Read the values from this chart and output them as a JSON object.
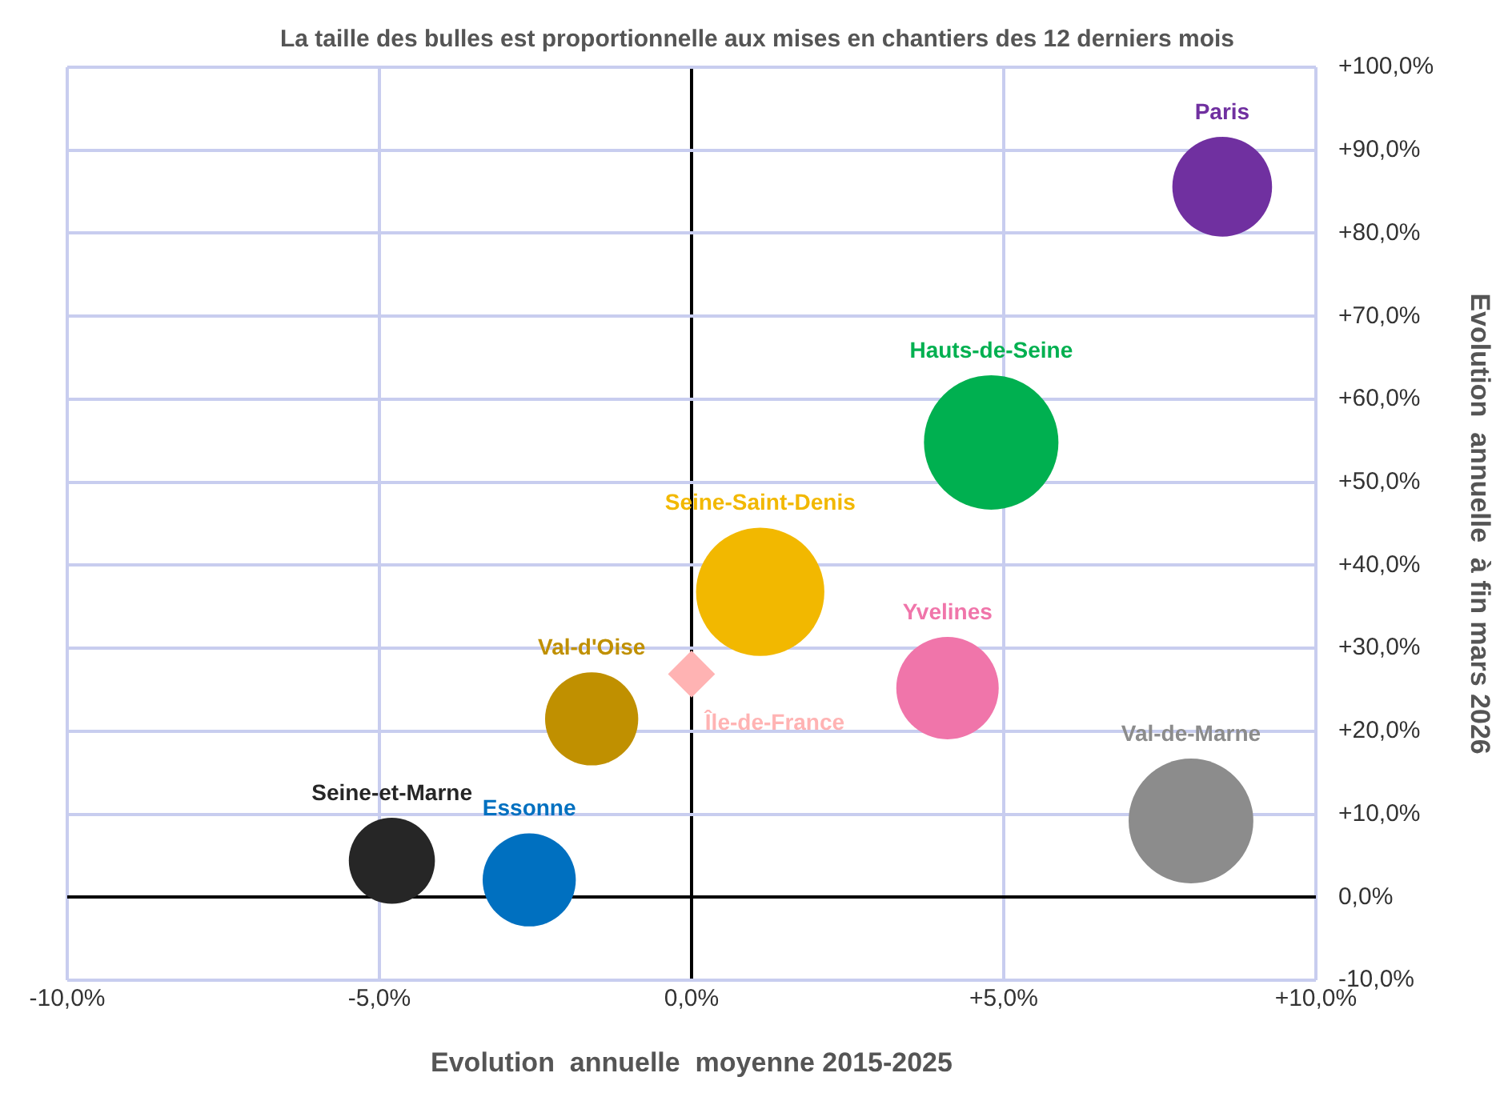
{
  "chart_data": {
    "type": "bubble",
    "title": "La taille des bulles est proportionnelle aux mises en chantiers des 12 derniers mois",
    "xlabel": "Evolution  annuelle  moyenne 2015-2025",
    "ylabel": "Evolution  annuelle  à fin mars 2026",
    "xlim": [
      -10,
      10
    ],
    "xticks": [
      {
        "value": -10,
        "label": "-10,0%"
      },
      {
        "value": -5,
        "label": "-5,0%"
      },
      {
        "value": 0,
        "label": "0,0%"
      },
      {
        "value": 5,
        "label": "+5,0%"
      },
      {
        "value": 10,
        "label": "+10,0%"
      }
    ],
    "ylim": [
      -10,
      100
    ],
    "yticks": [
      {
        "value": -10,
        "label": "-10,0%"
      },
      {
        "value": 0,
        "label": "0,0%"
      },
      {
        "value": 10,
        "label": "+10,0%"
      },
      {
        "value": 20,
        "label": "+20,0%"
      },
      {
        "value": 30,
        "label": "+30,0%"
      },
      {
        "value": 40,
        "label": "+40,0%"
      },
      {
        "value": 50,
        "label": "+50,0%"
      },
      {
        "value": 60,
        "label": "+60,0%"
      },
      {
        "value": 70,
        "label": "+70,0%"
      },
      {
        "value": 80,
        "label": "+80,0%"
      },
      {
        "value": 90,
        "label": "+90,0%"
      },
      {
        "value": 100,
        "label": "+100,0%"
      }
    ],
    "grid": true,
    "legend": false,
    "series": [
      {
        "name": "Paris",
        "color": "#7030a0",
        "x": [
          8.5
        ],
        "values": [
          85.6
        ],
        "sizes": [
          0.55
        ]
      },
      {
        "name": "Hauts-de-Seine",
        "color": "#00b050",
        "x": [
          4.8
        ],
        "values": [
          54.8
        ],
        "sizes": [
          1
        ]
      },
      {
        "name": "Seine-Saint-Denis",
        "color": "#f2b800",
        "x": [
          1.1
        ],
        "values": [
          36.8
        ],
        "sizes": [
          0.91
        ]
      },
      {
        "name": "Yvelines",
        "color": "#f075aa",
        "x": [
          4.1
        ],
        "values": [
          25.2
        ],
        "sizes": [
          0.58
        ]
      },
      {
        "name": "Val-de-Marne",
        "color": "#8c8c8c",
        "x": [
          8.0
        ],
        "values": [
          9.2
        ],
        "sizes": [
          0.86
        ]
      },
      {
        "name": "Val-d'Oise",
        "color": "#c09000",
        "x": [
          -1.6
        ],
        "values": [
          21.5
        ],
        "sizes": [
          0.48
        ]
      },
      {
        "name": "Seine-et-Marne",
        "color": "#262626",
        "x": [
          -4.8
        ],
        "values": [
          4.4
        ],
        "sizes": [
          0.41
        ]
      },
      {
        "name": "Essonne",
        "color": "#0070c0",
        "x": [
          -2.6
        ],
        "values": [
          2.1
        ],
        "sizes": [
          0.48
        ]
      },
      {
        "name": "Île-de-France",
        "type": "scatter",
        "marker": "diamond",
        "color": "#ffb3b3",
        "x": [
          0.0
        ],
        "values": [
          26.9
        ]
      }
    ]
  }
}
